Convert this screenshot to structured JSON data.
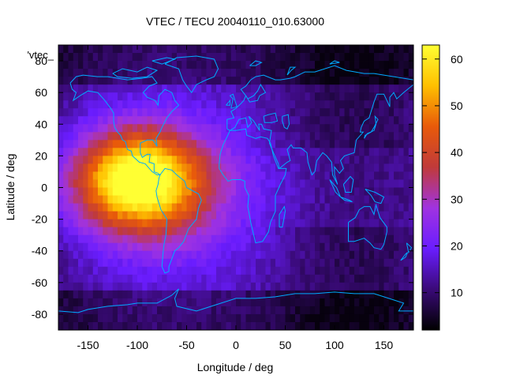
{
  "chart_data": {
    "type": "heatmap",
    "title": "VTEC / TECU 20040110_010.63000",
    "xlabel": "Longitude / deg",
    "ylabel": "Latitude / deg",
    "xlim": [
      -180,
      180
    ],
    "ylim": [
      -90,
      90
    ],
    "x_ticks": [
      -150,
      -100,
      -50,
      0,
      50,
      100,
      150
    ],
    "y_ticks": [
      -80,
      -60,
      -40,
      -20,
      0,
      20,
      40,
      60,
      80
    ],
    "legend_label": "'vtec_",
    "colorbar": {
      "range": [
        2,
        63
      ],
      "ticks": [
        10,
        20,
        30,
        40,
        50,
        60
      ],
      "colormap": "gnuplot-rgbformulae-7-5-15",
      "colors": [
        "#000000",
        "#3a0a78",
        "#6a1dff",
        "#a033e0",
        "#c03a3a",
        "#e85a0a",
        "#ffc000",
        "#ffff33"
      ]
    },
    "field_model": {
      "peak_value": 62,
      "peak_lon": -100,
      "peak_lat": 5,
      "background_value": 14,
      "night_value": 7
    },
    "overlay": "coastlines",
    "coastline_color": "#00aaff"
  }
}
